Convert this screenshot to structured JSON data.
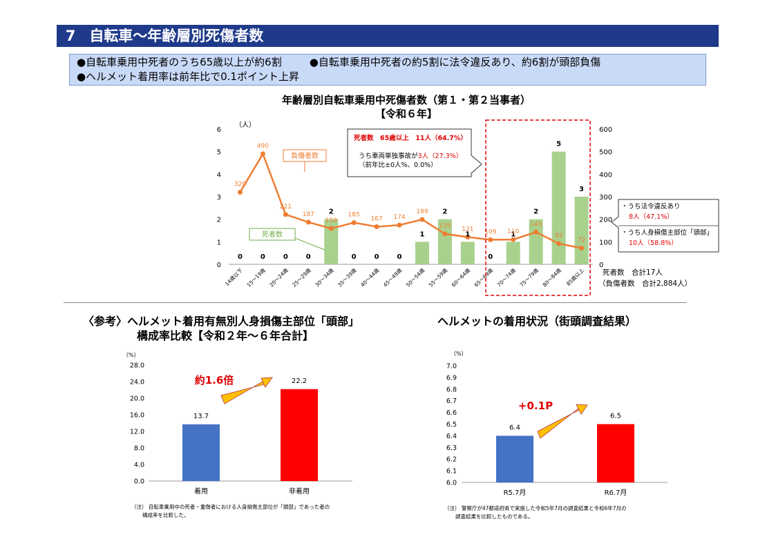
{
  "header": {
    "number": "7",
    "title": "自転車～年齢層別死傷者数"
  },
  "summary": {
    "line1a": "●自転車乗用中死者のうち65歳以上が約6割",
    "line1b": "●自転車乗用中死者の約5割に法令違反あり、約6割が頭部負傷",
    "line2": "●ヘルメット着用率は前年比で0.1ポイント上昇"
  },
  "main_chart": {
    "title_line1": "年齢層別自転車乗用中死傷者数（第１・第２当事者）",
    "title_line2": "【令和６年】",
    "left_unit": "（人）",
    "injured_label": "負傷者数",
    "deaths_label": "死者数",
    "callout_top": {
      "line1": "死者数　65歳以上　11人（64.7%）",
      "line2a": "うち車両単独事故が",
      "line2b": "3人（27.3%）",
      "line3": "（前年比±0人%、0.0%）"
    },
    "callout_right": {
      "line1": "・うち法令違反あり",
      "line2": "8人（47.1%）",
      "line3": "・うち人身損傷主部位「頭部」",
      "line4": "10人（58.8%）"
    },
    "total_deaths": "死者数　合計17人",
    "total_injured": "（負傷者数　合計2,884人）"
  },
  "ref": {
    "title_line1": "〈参考〉ヘルメット着用有無別人身損傷主部位「頭部」",
    "title_line2": "構成率比較【令和２年～６年合計】",
    "unit": "（%）",
    "arrow_label": "約1.6倍",
    "note_line1": "（注）  自転車乗用中の死者・重傷者における人身損傷主部位が「頭部」であった者の",
    "note_line2": "構成率を比較した。"
  },
  "helmet": {
    "title": "ヘルメットの着用状況（街頭調査結果）",
    "unit": "（%）",
    "arrow_label": "+0.1P",
    "note_line1": "（注）  警察庁が47都道府県で実施した令和5年7月の調査結果と令和6年7月の",
    "note_line2": "調査結果を比較したものである。"
  },
  "colors": {
    "header": "#1f3a8a",
    "summary_bg": "#c9daf8",
    "bar_green": "#a9d18e",
    "line_orange": "#ed7d31",
    "bar_blue": "#4472c4",
    "bar_red": "#ff0000",
    "callout_red": "#e00000"
  },
  "chart_data": [
    {
      "type": "bar+line",
      "categories": [
        "14歳以下",
        "15～19歳",
        "20～24歳",
        "25～29歳",
        "30～34歳",
        "35～39歳",
        "40～44歳",
        "45～49歳",
        "50～54歳",
        "55～59歳",
        "60～64歳",
        "65～69歳",
        "70～74歳",
        "75～79歳",
        "80～84歳",
        "85歳以上"
      ],
      "series": [
        {
          "name": "死者数",
          "type": "bar",
          "axis": "left",
          "values": [
            0,
            0,
            0,
            0,
            2,
            0,
            0,
            0,
            1,
            2,
            1,
            0,
            1,
            2,
            5,
            3
          ]
        },
        {
          "name": "負傷者数",
          "type": "line",
          "axis": "right",
          "values": [
            320,
            490,
            221,
            187,
            159,
            185,
            167,
            174,
            199,
            135,
            121,
            109,
            110,
            143,
            92,
            72
          ]
        }
      ],
      "left_ticks": [
        "0",
        "1",
        "2",
        "3",
        "4",
        "5",
        "6"
      ],
      "right_ticks": [
        "0",
        "100",
        "200",
        "300",
        "400",
        "500",
        "600"
      ],
      "ylim_left": [
        0,
        6
      ],
      "ylim_right": [
        0,
        600
      ]
    },
    {
      "type": "bar",
      "categories": [
        "着用",
        "非着用"
      ],
      "values": [
        13.7,
        22.2
      ],
      "value_labels": [
        "13.7",
        "22.2"
      ],
      "ticks": [
        "0.0",
        "4.0",
        "8.0",
        "12.0",
        "16.0",
        "20.0",
        "24.0",
        "28.0"
      ],
      "ylim": [
        0,
        28
      ]
    },
    {
      "type": "bar",
      "categories": [
        "R5.7月",
        "R6.7月"
      ],
      "values": [
        6.4,
        6.5
      ],
      "value_labels": [
        "6.4",
        "6.5"
      ],
      "ticks": [
        "6.0",
        "6.1",
        "6.2",
        "6.3",
        "6.4",
        "6.5",
        "6.6",
        "6.7",
        "6.8",
        "6.9",
        "7.0"
      ],
      "ylim": [
        6.0,
        7.0
      ]
    }
  ]
}
